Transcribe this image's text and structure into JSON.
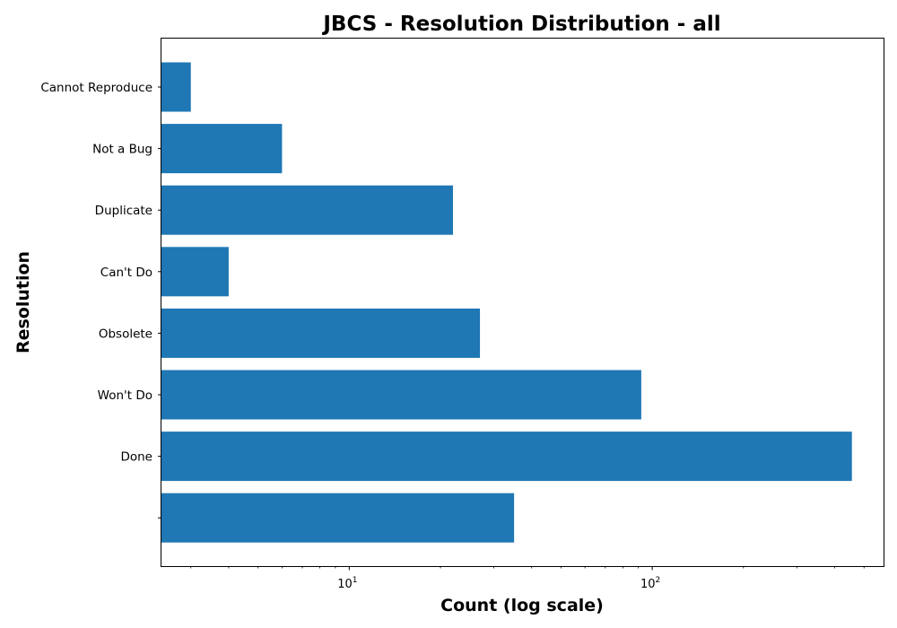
{
  "chart_data": {
    "type": "bar",
    "orientation": "horizontal",
    "title": "JBCS - Resolution Distribution - all",
    "xlabel": "Count (log scale)",
    "ylabel": "Resolution",
    "x_scale": "log",
    "xlim": [
      2.4,
      580
    ],
    "x_ticks": [
      {
        "base": "10",
        "exp": "1",
        "value": 10
      },
      {
        "base": "10",
        "exp": "2",
        "value": 100
      }
    ],
    "categories": [
      "Cannot Reproduce",
      "Not a Bug",
      "Duplicate",
      "Can't Do",
      "Obsolete",
      "Won't Do",
      "Done",
      ""
    ],
    "values": [
      3,
      6,
      22,
      4,
      27,
      92,
      456,
      35
    ],
    "bar_color": "#1f77b4",
    "grid": false,
    "legend": "none"
  }
}
